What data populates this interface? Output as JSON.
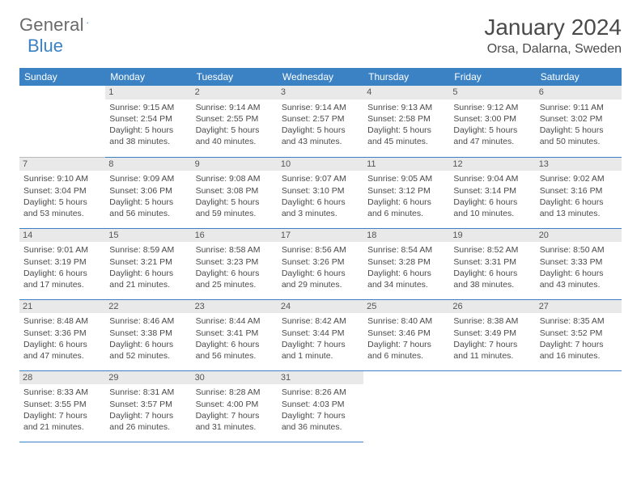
{
  "brand": {
    "name_gray": "General",
    "name_blue": "Blue"
  },
  "title": {
    "month": "January 2024",
    "location": "Orsa, Dalarna, Sweden"
  },
  "colors": {
    "header_bg": "#3b82c4",
    "header_text": "#ffffff",
    "daynum_bg": "#e9e9e9",
    "row_divider": "#b9b9b9",
    "week_divider": "#3b82c4",
    "body_text": "#4a4a4a"
  },
  "weekdays": [
    "Sunday",
    "Monday",
    "Tuesday",
    "Wednesday",
    "Thursday",
    "Friday",
    "Saturday"
  ],
  "weeks": [
    [
      null,
      {
        "n": "1",
        "sunrise": "9:15 AM",
        "sunset": "2:54 PM",
        "daylight": "5 hours and 38 minutes."
      },
      {
        "n": "2",
        "sunrise": "9:14 AM",
        "sunset": "2:55 PM",
        "daylight": "5 hours and 40 minutes."
      },
      {
        "n": "3",
        "sunrise": "9:14 AM",
        "sunset": "2:57 PM",
        "daylight": "5 hours and 43 minutes."
      },
      {
        "n": "4",
        "sunrise": "9:13 AM",
        "sunset": "2:58 PM",
        "daylight": "5 hours and 45 minutes."
      },
      {
        "n": "5",
        "sunrise": "9:12 AM",
        "sunset": "3:00 PM",
        "daylight": "5 hours and 47 minutes."
      },
      {
        "n": "6",
        "sunrise": "9:11 AM",
        "sunset": "3:02 PM",
        "daylight": "5 hours and 50 minutes."
      }
    ],
    [
      {
        "n": "7",
        "sunrise": "9:10 AM",
        "sunset": "3:04 PM",
        "daylight": "5 hours and 53 minutes."
      },
      {
        "n": "8",
        "sunrise": "9:09 AM",
        "sunset": "3:06 PM",
        "daylight": "5 hours and 56 minutes."
      },
      {
        "n": "9",
        "sunrise": "9:08 AM",
        "sunset": "3:08 PM",
        "daylight": "5 hours and 59 minutes."
      },
      {
        "n": "10",
        "sunrise": "9:07 AM",
        "sunset": "3:10 PM",
        "daylight": "6 hours and 3 minutes."
      },
      {
        "n": "11",
        "sunrise": "9:05 AM",
        "sunset": "3:12 PM",
        "daylight": "6 hours and 6 minutes."
      },
      {
        "n": "12",
        "sunrise": "9:04 AM",
        "sunset": "3:14 PM",
        "daylight": "6 hours and 10 minutes."
      },
      {
        "n": "13",
        "sunrise": "9:02 AM",
        "sunset": "3:16 PM",
        "daylight": "6 hours and 13 minutes."
      }
    ],
    [
      {
        "n": "14",
        "sunrise": "9:01 AM",
        "sunset": "3:19 PM",
        "daylight": "6 hours and 17 minutes."
      },
      {
        "n": "15",
        "sunrise": "8:59 AM",
        "sunset": "3:21 PM",
        "daylight": "6 hours and 21 minutes."
      },
      {
        "n": "16",
        "sunrise": "8:58 AM",
        "sunset": "3:23 PM",
        "daylight": "6 hours and 25 minutes."
      },
      {
        "n": "17",
        "sunrise": "8:56 AM",
        "sunset": "3:26 PM",
        "daylight": "6 hours and 29 minutes."
      },
      {
        "n": "18",
        "sunrise": "8:54 AM",
        "sunset": "3:28 PM",
        "daylight": "6 hours and 34 minutes."
      },
      {
        "n": "19",
        "sunrise": "8:52 AM",
        "sunset": "3:31 PM",
        "daylight": "6 hours and 38 minutes."
      },
      {
        "n": "20",
        "sunrise": "8:50 AM",
        "sunset": "3:33 PM",
        "daylight": "6 hours and 43 minutes."
      }
    ],
    [
      {
        "n": "21",
        "sunrise": "8:48 AM",
        "sunset": "3:36 PM",
        "daylight": "6 hours and 47 minutes."
      },
      {
        "n": "22",
        "sunrise": "8:46 AM",
        "sunset": "3:38 PM",
        "daylight": "6 hours and 52 minutes."
      },
      {
        "n": "23",
        "sunrise": "8:44 AM",
        "sunset": "3:41 PM",
        "daylight": "6 hours and 56 minutes."
      },
      {
        "n": "24",
        "sunrise": "8:42 AM",
        "sunset": "3:44 PM",
        "daylight": "7 hours and 1 minute."
      },
      {
        "n": "25",
        "sunrise": "8:40 AM",
        "sunset": "3:46 PM",
        "daylight": "7 hours and 6 minutes."
      },
      {
        "n": "26",
        "sunrise": "8:38 AM",
        "sunset": "3:49 PM",
        "daylight": "7 hours and 11 minutes."
      },
      {
        "n": "27",
        "sunrise": "8:35 AM",
        "sunset": "3:52 PM",
        "daylight": "7 hours and 16 minutes."
      }
    ],
    [
      {
        "n": "28",
        "sunrise": "8:33 AM",
        "sunset": "3:55 PM",
        "daylight": "7 hours and 21 minutes."
      },
      {
        "n": "29",
        "sunrise": "8:31 AM",
        "sunset": "3:57 PM",
        "daylight": "7 hours and 26 minutes."
      },
      {
        "n": "30",
        "sunrise": "8:28 AM",
        "sunset": "4:00 PM",
        "daylight": "7 hours and 31 minutes."
      },
      {
        "n": "31",
        "sunrise": "8:26 AM",
        "sunset": "4:03 PM",
        "daylight": "7 hours and 36 minutes."
      },
      null,
      null,
      null
    ]
  ],
  "labels": {
    "sunrise": "Sunrise:",
    "sunset": "Sunset:",
    "daylight": "Daylight:"
  }
}
